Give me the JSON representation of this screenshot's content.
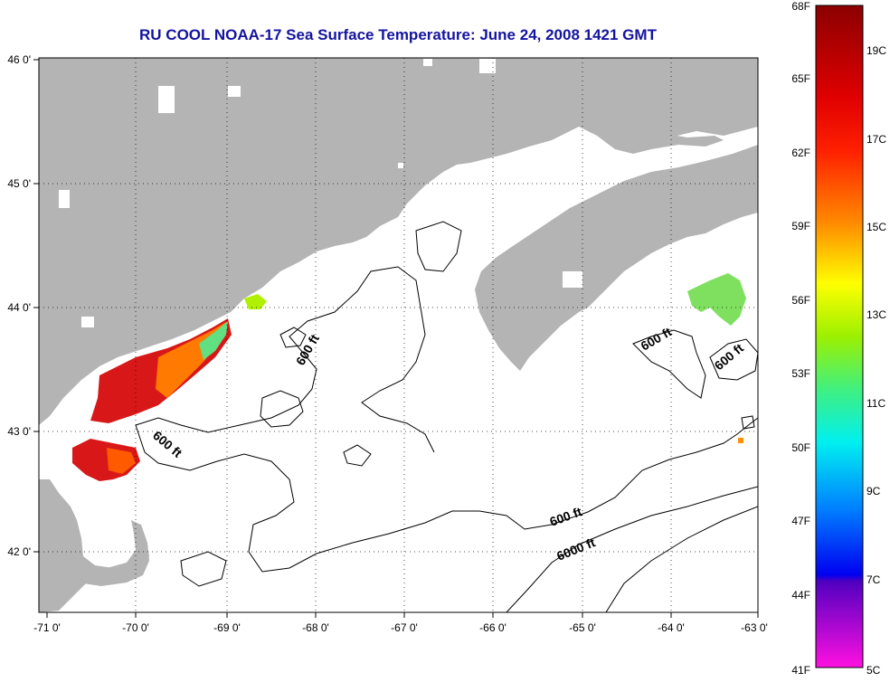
{
  "title": "RU COOL  NOAA-17  Sea Surface Temperature:  June 24, 2008 1421 GMT",
  "lon_ticks": [
    "-71 0'",
    "-70 0'",
    "-69 0'",
    "-68 0'",
    "-67 0'",
    "-66 0'",
    "-65 0'",
    "-64 0'",
    "-63 0'"
  ],
  "lat_ticks": [
    "46 0'",
    "45 0'",
    "44 0'",
    "43 0'",
    "42 0'"
  ],
  "contour_labels": [
    "600 ft",
    "600 ft",
    "600 ft",
    "600 ft",
    "600 ft",
    "6000 ft"
  ],
  "colorbar": {
    "fahrenheit": [
      "68F",
      "65F",
      "62F",
      "59F",
      "56F",
      "53F",
      "50F",
      "47F",
      "44F",
      "41F"
    ],
    "celsius": [
      "19C",
      "17C",
      "15C",
      "13C",
      "11C",
      "9C",
      "7C",
      "5C"
    ]
  },
  "colors": {
    "land": "#b4b4b4",
    "water": "#ffffff",
    "title": "#1414a0"
  }
}
